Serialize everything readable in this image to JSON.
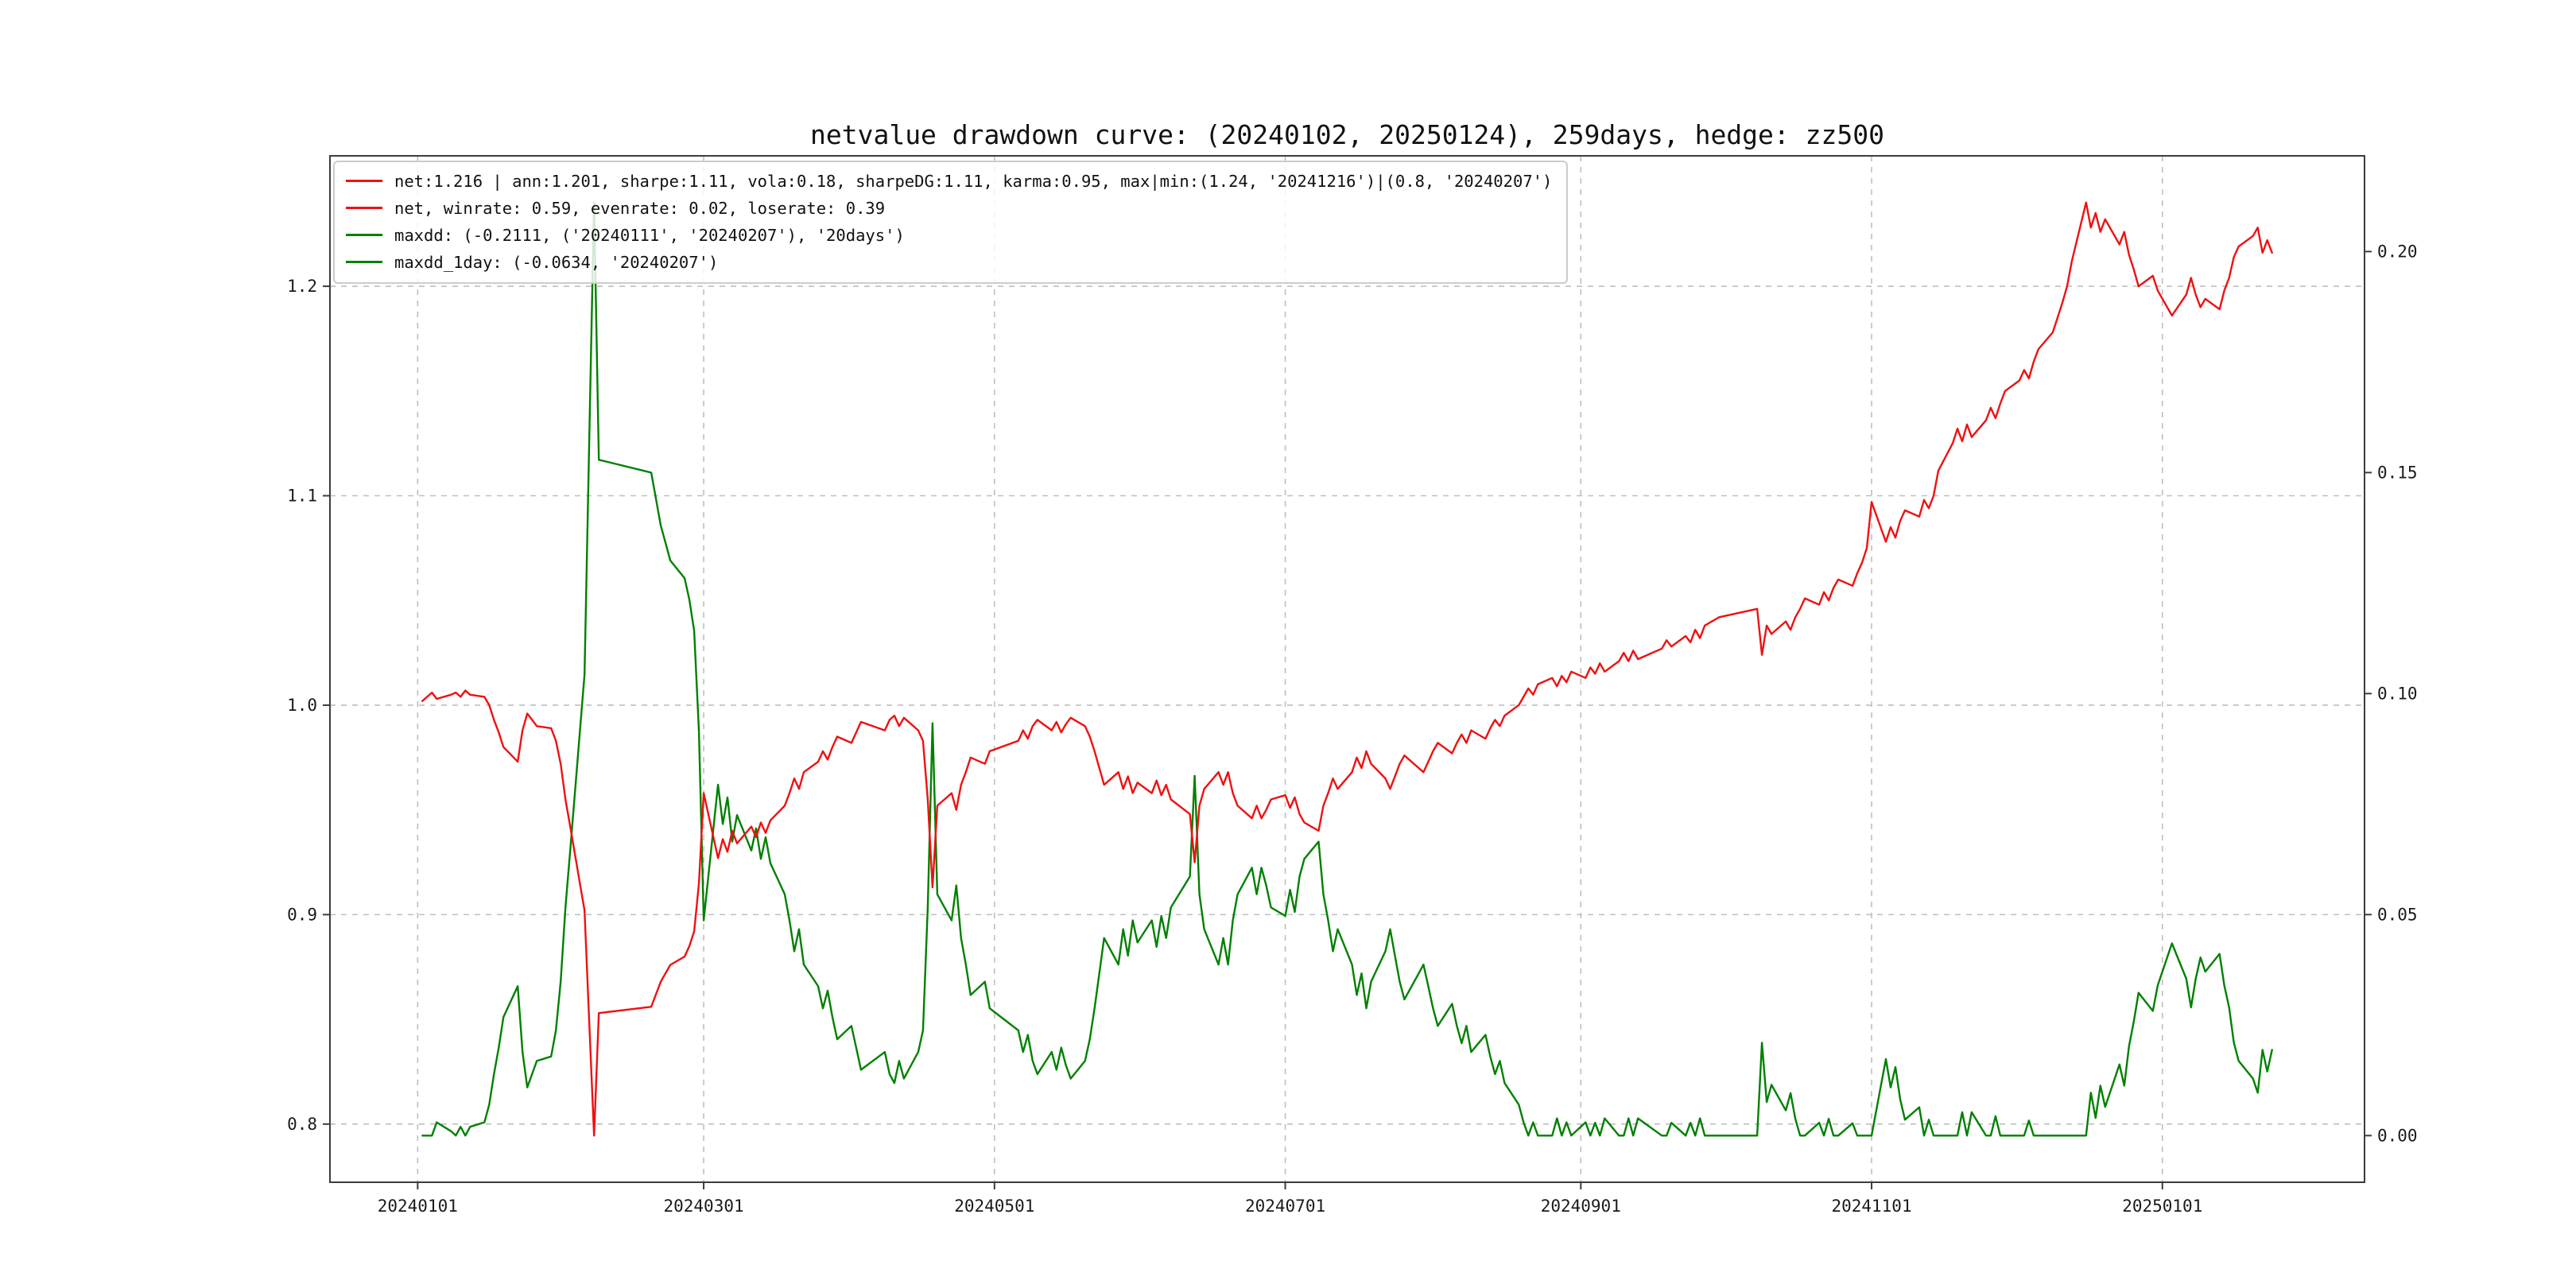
{
  "legend": {
    "entries": [
      {
        "label": "net:1.216 | ann:1.201, sharpe:1.11, vola:0.18, sharpeDG:1.11, karma:0.95, max|min:(1.24, '20241216')|(0.8, '20240207')",
        "color": "#ee1111"
      },
      {
        "label": "net, winrate: 0.59, evenrate: 0.02, loserate: 0.39",
        "color": "#ee1111"
      },
      {
        "label": "maxdd: (-0.2111, ('20240111', '20240207'), '20days')",
        "color": "#008000"
      },
      {
        "label": "maxdd_1day: (-0.0634, '20240207')",
        "color": "#008000"
      }
    ]
  },
  "chart_data": {
    "type": "line",
    "title": "netvalue drawdown curve: (20240102, 20250124), 259days, hedge: zz500",
    "grid": true,
    "legend_position": "upper left",
    "x_ticks": [
      "20240101",
      "20240301",
      "20240501",
      "20240701",
      "20240901",
      "20241101",
      "20250101"
    ],
    "y_left": {
      "ticks": [
        0.8,
        0.9,
        1.0,
        1.1,
        1.2
      ],
      "tick_labels": [
        "0.8",
        "0.9",
        "1.0",
        "1.1",
        "1.2"
      ]
    },
    "y_right": {
      "ticks": [
        0.0,
        0.05,
        0.1,
        0.15,
        0.2
      ],
      "tick_labels": [
        "0.00",
        "0.05",
        "0.10",
        "0.15",
        "0.20"
      ]
    },
    "x_margin_frac": 0.05,
    "y_margin_frac": 0.05,
    "colors": {
      "grid": "#bfbfbf",
      "spine": "#3c3c3c",
      "text": "#1a1a1a",
      "background": "#ffffff"
    },
    "dates": [
      "20240102",
      "20240103",
      "20240104",
      "20240105",
      "20240108",
      "20240109",
      "20240110",
      "20240111",
      "20240112",
      "20240115",
      "20240116",
      "20240117",
      "20240118",
      "20240119",
      "20240122",
      "20240123",
      "20240124",
      "20240125",
      "20240126",
      "20240129",
      "20240130",
      "20240131",
      "20240201",
      "20240202",
      "20240205",
      "20240206",
      "20240207",
      "20240208",
      "20240219",
      "20240220",
      "20240221",
      "20240222",
      "20240223",
      "20240226",
      "20240227",
      "20240228",
      "20240229",
      "20240301",
      "20240304",
      "20240305",
      "20240306",
      "20240307",
      "20240308",
      "20240311",
      "20240312",
      "20240313",
      "20240314",
      "20240315",
      "20240318",
      "20240319",
      "20240320",
      "20240321",
      "20240322",
      "20240325",
      "20240326",
      "20240327",
      "20240328",
      "20240329",
      "20240401",
      "20240402",
      "20240403",
      "20240408",
      "20240409",
      "20240410",
      "20240411",
      "20240412",
      "20240415",
      "20240416",
      "20240417",
      "20240418",
      "20240419",
      "20240422",
      "20240423",
      "20240424",
      "20240425",
      "20240426",
      "20240429",
      "20240430",
      "20240506",
      "20240507",
      "20240508",
      "20240509",
      "20240510",
      "20240513",
      "20240514",
      "20240515",
      "20240516",
      "20240517",
      "20240520",
      "20240521",
      "20240522",
      "20240523",
      "20240524",
      "20240527",
      "20240528",
      "20240529",
      "20240530",
      "20240531",
      "20240603",
      "20240604",
      "20240605",
      "20240606",
      "20240607",
      "20240611",
      "20240612",
      "20240613",
      "20240614",
      "20240617",
      "20240618",
      "20240619",
      "20240620",
      "20240621",
      "20240624",
      "20240625",
      "20240626",
      "20240627",
      "20240628",
      "20240701",
      "20240702",
      "20240703",
      "20240704",
      "20240705",
      "20240708",
      "20240709",
      "20240710",
      "20240711",
      "20240712",
      "20240715",
      "20240716",
      "20240717",
      "20240718",
      "20240719",
      "20240722",
      "20240723",
      "20240724",
      "20240725",
      "20240726",
      "20240729",
      "20240730",
      "20240731",
      "20240801",
      "20240802",
      "20240805",
      "20240806",
      "20240807",
      "20240808",
      "20240809",
      "20240812",
      "20240813",
      "20240814",
      "20240815",
      "20240816",
      "20240819",
      "20240820",
      "20240821",
      "20240822",
      "20240823",
      "20240826",
      "20240827",
      "20240828",
      "20240829",
      "20240830",
      "20240902",
      "20240903",
      "20240904",
      "20240905",
      "20240906",
      "20240909",
      "20240910",
      "20240911",
      "20240912",
      "20240913",
      "20240918",
      "20240919",
      "20240920",
      "20240923",
      "20240924",
      "20240925",
      "20240926",
      "20240927",
      "20240930",
      "20241008",
      "20241009",
      "20241010",
      "20241011",
      "20241014",
      "20241015",
      "20241016",
      "20241017",
      "20241018",
      "20241021",
      "20241022",
      "20241023",
      "20241024",
      "20241025",
      "20241028",
      "20241029",
      "20241030",
      "20241031",
      "20241101",
      "20241104",
      "20241105",
      "20241106",
      "20241107",
      "20241108",
      "20241111",
      "20241112",
      "20241113",
      "20241114",
      "20241115",
      "20241118",
      "20241119",
      "20241120",
      "20241121",
      "20241122",
      "20241125",
      "20241126",
      "20241127",
      "20241128",
      "20241129",
      "20241202",
      "20241203",
      "20241204",
      "20241205",
      "20241206",
      "20241209",
      "20241210",
      "20241211",
      "20241212",
      "20241213",
      "20241216",
      "20241217",
      "20241218",
      "20241219",
      "20241220",
      "20241223",
      "20241224",
      "20241225",
      "20241226",
      "20241227",
      "20241230",
      "20241231",
      "20250102",
      "20250103",
      "20250106",
      "20250107",
      "20250108",
      "20250109",
      "20250110",
      "20250113",
      "20250114",
      "20250115",
      "20250116",
      "20250117",
      "20250120",
      "20250121",
      "20250122",
      "20250123",
      "20250124"
    ],
    "series": [
      {
        "name": "net",
        "axis": "left",
        "color": "#ee1111",
        "values": [
          1.002,
          1.004,
          1.006,
          1.003,
          1.005,
          1.006,
          1.004,
          1.007,
          1.005,
          1.004,
          1.0,
          0.993,
          0.987,
          0.98,
          0.973,
          0.988,
          0.996,
          0.993,
          0.99,
          0.989,
          0.983,
          0.972,
          0.955,
          0.942,
          0.902,
          0.848,
          0.7945,
          0.853,
          0.856,
          0.862,
          0.868,
          0.872,
          0.876,
          0.88,
          0.885,
          0.892,
          0.915,
          0.958,
          0.927,
          0.936,
          0.93,
          0.94,
          0.934,
          0.942,
          0.937,
          0.944,
          0.939,
          0.945,
          0.952,
          0.958,
          0.965,
          0.96,
          0.968,
          0.973,
          0.978,
          0.974,
          0.98,
          0.985,
          0.982,
          0.987,
          0.992,
          0.988,
          0.993,
          0.995,
          0.99,
          0.994,
          0.988,
          0.983,
          0.955,
          0.913,
          0.952,
          0.958,
          0.95,
          0.962,
          0.968,
          0.975,
          0.972,
          0.978,
          0.983,
          0.988,
          0.984,
          0.99,
          0.993,
          0.988,
          0.992,
          0.987,
          0.991,
          0.994,
          0.99,
          0.985,
          0.978,
          0.97,
          0.962,
          0.968,
          0.96,
          0.966,
          0.958,
          0.963,
          0.958,
          0.964,
          0.957,
          0.962,
          0.955,
          0.948,
          0.925,
          0.952,
          0.96,
          0.968,
          0.962,
          0.968,
          0.958,
          0.952,
          0.946,
          0.952,
          0.946,
          0.95,
          0.955,
          0.957,
          0.951,
          0.956,
          0.948,
          0.944,
          0.94,
          0.952,
          0.958,
          0.965,
          0.96,
          0.968,
          0.975,
          0.97,
          0.978,
          0.972,
          0.965,
          0.96,
          0.966,
          0.972,
          0.976,
          0.97,
          0.968,
          0.973,
          0.978,
          0.982,
          0.977,
          0.982,
          0.986,
          0.982,
          0.988,
          0.984,
          0.989,
          0.993,
          0.99,
          0.995,
          1.0,
          1.004,
          1.008,
          1.005,
          1.01,
          1.013,
          1.009,
          1.014,
          1.011,
          1.016,
          1.013,
          1.018,
          1.015,
          1.02,
          1.016,
          1.021,
          1.025,
          1.021,
          1.026,
          1.022,
          1.027,
          1.031,
          1.028,
          1.033,
          1.03,
          1.036,
          1.032,
          1.038,
          1.042,
          1.046,
          1.024,
          1.038,
          1.034,
          1.04,
          1.036,
          1.042,
          1.046,
          1.051,
          1.048,
          1.054,
          1.05,
          1.056,
          1.06,
          1.057,
          1.063,
          1.068,
          1.075,
          1.097,
          1.078,
          1.085,
          1.08,
          1.088,
          1.093,
          1.09,
          1.098,
          1.094,
          1.1,
          1.112,
          1.125,
          1.132,
          1.126,
          1.134,
          1.128,
          1.136,
          1.142,
          1.137,
          1.144,
          1.15,
          1.155,
          1.16,
          1.156,
          1.164,
          1.17,
          1.178,
          1.185,
          1.192,
          1.2,
          1.212,
          1.24,
          1.228,
          1.235,
          1.226,
          1.232,
          1.22,
          1.226,
          1.215,
          1.208,
          1.2,
          1.205,
          1.198,
          1.19,
          1.186,
          1.196,
          1.204,
          1.196,
          1.19,
          1.194,
          1.189,
          1.198,
          1.204,
          1.214,
          1.219,
          1.224,
          1.228,
          1.216,
          1.222,
          1.216
        ]
      },
      {
        "name": "drawdown",
        "axis": "right",
        "color": "#008000",
        "values": [
          0.0,
          0.0,
          0.0,
          0.003,
          0.001,
          0.0,
          0.002,
          0.0,
          0.002,
          0.003,
          0.007,
          0.0139,
          0.0199,
          0.0268,
          0.0338,
          0.0189,
          0.0109,
          0.0139,
          0.0169,
          0.0179,
          0.0238,
          0.0348,
          0.0516,
          0.0645,
          0.1043,
          0.1579,
          0.2111,
          0.1529,
          0.15,
          0.144,
          0.138,
          0.1341,
          0.1301,
          0.1261,
          0.1212,
          0.1142,
          0.0914,
          0.0487,
          0.0794,
          0.0705,
          0.0765,
          0.0665,
          0.0725,
          0.0645,
          0.0695,
          0.0626,
          0.0675,
          0.0616,
          0.0546,
          0.0487,
          0.0417,
          0.0467,
          0.0387,
          0.0338,
          0.0288,
          0.0328,
          0.0268,
          0.0218,
          0.0248,
          0.0199,
          0.0149,
          0.0189,
          0.0139,
          0.0119,
          0.0169,
          0.0129,
          0.0189,
          0.0238,
          0.0516,
          0.0933,
          0.0546,
          0.0487,
          0.0566,
          0.0447,
          0.0387,
          0.0318,
          0.0348,
          0.0288,
          0.0238,
          0.0189,
          0.0228,
          0.0169,
          0.0139,
          0.0189,
          0.0149,
          0.0199,
          0.0159,
          0.0129,
          0.0169,
          0.0218,
          0.0288,
          0.0367,
          0.0447,
          0.0387,
          0.0467,
          0.0407,
          0.0487,
          0.0437,
          0.0487,
          0.0427,
          0.0497,
          0.0447,
          0.0516,
          0.0586,
          0.0814,
          0.0546,
          0.0467,
          0.0387,
          0.0447,
          0.0387,
          0.0487,
          0.0546,
          0.0606,
          0.0546,
          0.0606,
          0.0566,
          0.0516,
          0.0497,
          0.0556,
          0.0506,
          0.0586,
          0.0626,
          0.0665,
          0.0546,
          0.0487,
          0.0417,
          0.0467,
          0.0387,
          0.0318,
          0.0367,
          0.0288,
          0.0348,
          0.0417,
          0.0467,
          0.0407,
          0.0348,
          0.0308,
          0.0367,
          0.0387,
          0.0338,
          0.0288,
          0.0248,
          0.0298,
          0.0248,
          0.0209,
          0.0248,
          0.0189,
          0.0228,
          0.0179,
          0.0139,
          0.0169,
          0.0119,
          0.007,
          0.003,
          0.0,
          0.003,
          0.0,
          0.0,
          0.0039,
          0.0,
          0.003,
          0.0,
          0.003,
          0.0,
          0.0029,
          0.0,
          0.0039,
          0.0,
          0.0,
          0.0039,
          0.0,
          0.0039,
          0.0,
          0.0,
          0.0029,
          0.0,
          0.0029,
          0.0,
          0.0039,
          0.0,
          0.0,
          0.0,
          0.021,
          0.0076,
          0.0115,
          0.0057,
          0.0096,
          0.0038,
          0.0,
          0.0,
          0.0029,
          0.0,
          0.0038,
          0.0,
          0.0,
          0.0028,
          0.0,
          0.0,
          0.0,
          0.0,
          0.0173,
          0.0109,
          0.0155,
          0.0082,
          0.0036,
          0.0064,
          0.0,
          0.0036,
          0.0,
          0.0,
          0.0,
          0.0,
          0.0053,
          0.0,
          0.0053,
          0.0,
          0.0,
          0.0044,
          0.0,
          0.0,
          0.0,
          0.0,
          0.0034,
          0.0,
          0.0,
          0.0,
          0.0,
          0.0,
          0.0,
          0.0,
          0.0,
          0.0097,
          0.004,
          0.0113,
          0.0065,
          0.0161,
          0.0113,
          0.0202,
          0.0258,
          0.0323,
          0.0282,
          0.0339,
          0.0403,
          0.0435,
          0.0355,
          0.029,
          0.0355,
          0.0403,
          0.0371,
          0.0411,
          0.0339,
          0.029,
          0.021,
          0.0169,
          0.0129,
          0.0097,
          0.0194,
          0.0145,
          0.0194
        ]
      }
    ]
  }
}
